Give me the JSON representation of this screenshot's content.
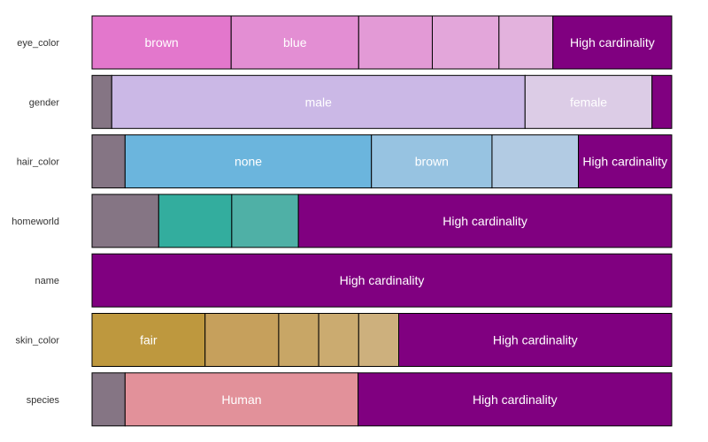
{
  "chart_data": {
    "type": "bar",
    "subtype": "stacked-horizontal-proportion",
    "title": "",
    "xlabel": "",
    "ylabel": "",
    "xlim": [
      0,
      1
    ],
    "grid": false,
    "legend": "none",
    "other_label": "High cardinality",
    "rows": [
      {
        "variable": "eye_color",
        "segments": [
          {
            "label": "brown",
            "value": 0.24,
            "color": "#e377cc"
          },
          {
            "label": "blue",
            "value": 0.22,
            "color": "#e38ed3"
          },
          {
            "label": "",
            "value": 0.127,
            "color": "#e39ad6"
          },
          {
            "label": "",
            "value": 0.115,
            "color": "#e3a6da"
          },
          {
            "label": "",
            "value": 0.093,
            "color": "#e3b2dd"
          },
          {
            "label": "High cardinality",
            "value": 0.205,
            "color": "#800080"
          }
        ]
      },
      {
        "variable": "gender",
        "segments": [
          {
            "label": "",
            "value": 0.034,
            "color": "#857584"
          },
          {
            "label": "male",
            "value": 0.713,
            "color": "#cbb8e6"
          },
          {
            "label": "female",
            "value": 0.219,
            "color": "#dccce6"
          },
          {
            "label": "",
            "value": 0.034,
            "color": "#800080"
          }
        ]
      },
      {
        "variable": "hair_color",
        "segments": [
          {
            "label": "",
            "value": 0.057,
            "color": "#857584"
          },
          {
            "label": "none",
            "value": 0.425,
            "color": "#6bb5dd"
          },
          {
            "label": "brown",
            "value": 0.208,
            "color": "#97c3e1"
          },
          {
            "label": "",
            "value": 0.149,
            "color": "#b2cbe3"
          },
          {
            "label": "High cardinality",
            "value": 0.161,
            "color": "#800080"
          }
        ]
      },
      {
        "variable": "homeworld",
        "segments": [
          {
            "label": "",
            "value": 0.115,
            "color": "#857584"
          },
          {
            "label": "",
            "value": 0.126,
            "color": "#33ad9e"
          },
          {
            "label": "",
            "value": 0.115,
            "color": "#4fb0a6"
          },
          {
            "label": "High cardinality",
            "value": 0.644,
            "color": "#800080"
          }
        ]
      },
      {
        "variable": "name",
        "segments": [
          {
            "label": "High cardinality",
            "value": 1.0,
            "color": "#800080"
          }
        ]
      },
      {
        "variable": "skin_color",
        "segments": [
          {
            "label": "fair",
            "value": 0.195,
            "color": "#be983e"
          },
          {
            "label": "",
            "value": 0.127,
            "color": "#c6a05c"
          },
          {
            "label": "",
            "value": 0.069,
            "color": "#c8a666"
          },
          {
            "label": "",
            "value": 0.069,
            "color": "#cbab70"
          },
          {
            "label": "",
            "value": 0.069,
            "color": "#cdb07d"
          },
          {
            "label": "High cardinality",
            "value": 0.471,
            "color": "#800080"
          }
        ]
      },
      {
        "variable": "species",
        "segments": [
          {
            "label": "",
            "value": 0.057,
            "color": "#857584"
          },
          {
            "label": "Human",
            "value": 0.402,
            "color": "#e2919a"
          },
          {
            "label": "High cardinality",
            "value": 0.541,
            "color": "#800080"
          }
        ]
      }
    ]
  }
}
